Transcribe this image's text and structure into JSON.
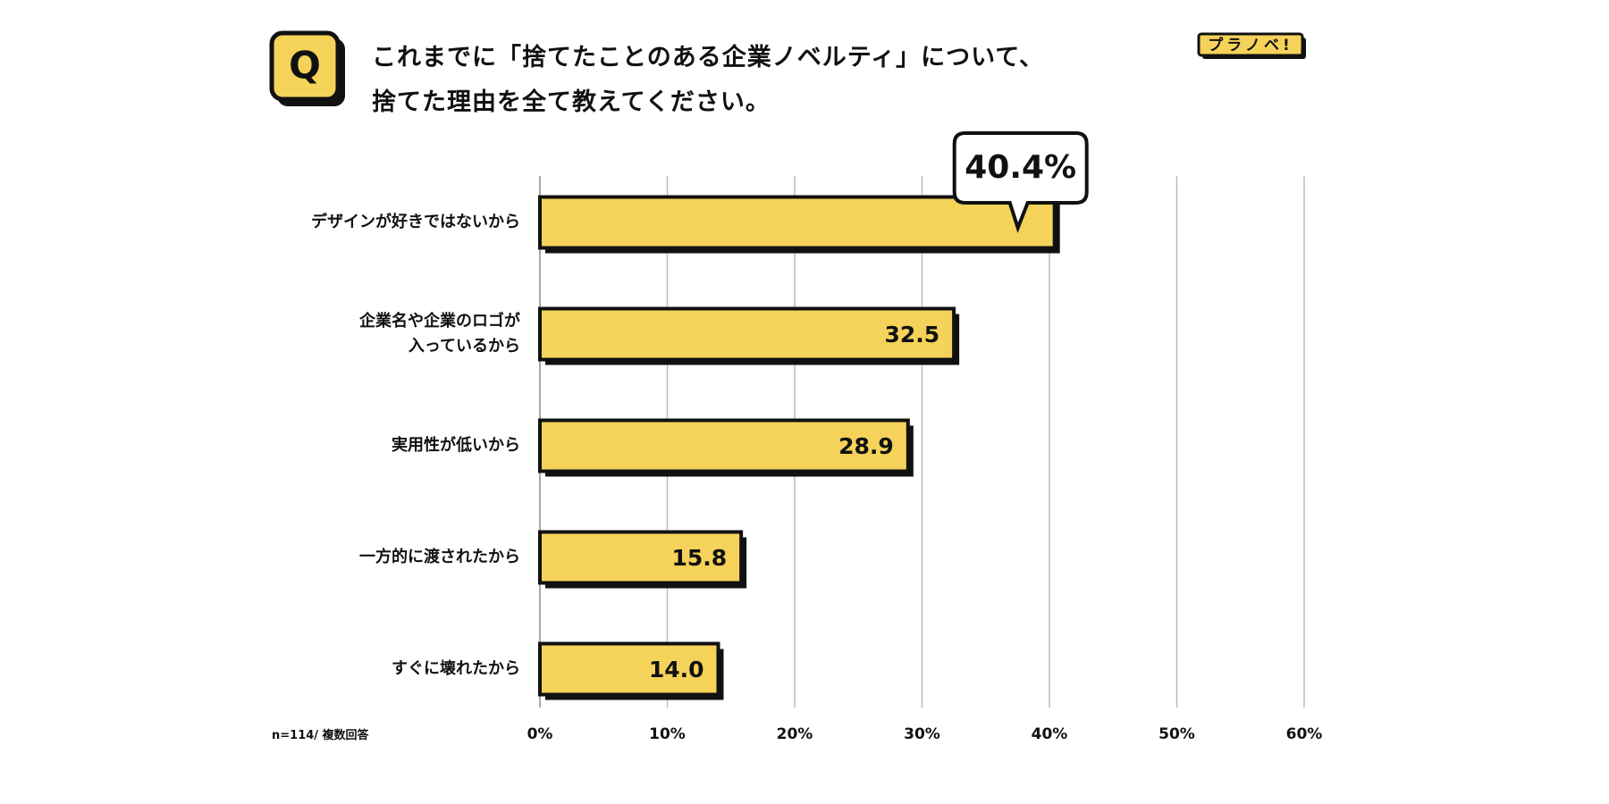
{
  "chart_data": {
    "type": "barh",
    "title": "これまでに「捨てたことのある企業ノベルティ」について、\n捨てた理由を全て教えてください。",
    "question_marker": "Q",
    "brand": "プラノベ!",
    "note": "n=114/ 複数回答",
    "categories": [
      "デザインが好きではないから",
      "企業名や企業のロゴが\n入っているから",
      "実用性が低いから",
      "一方的に渡されたから",
      "すぐに壊れたから"
    ],
    "values": [
      40.4,
      32.5,
      28.9,
      15.8,
      14.0
    ],
    "value_labels": [
      "40.4%",
      "32.5",
      "28.9",
      "15.8",
      "14.0"
    ],
    "color": "#f5d25a",
    "xlim": [
      0,
      60
    ],
    "xticks": [
      {
        "value": 0,
        "label": "0%"
      },
      {
        "value": 10,
        "label": "10%"
      },
      {
        "value": 20,
        "label": "20%"
      },
      {
        "value": 30,
        "label": "30%"
      },
      {
        "value": 40,
        "label": "40%"
      },
      {
        "value": 50,
        "label": "50%"
      },
      {
        "value": 60,
        "label": "60%"
      }
    ],
    "grid": true
  }
}
